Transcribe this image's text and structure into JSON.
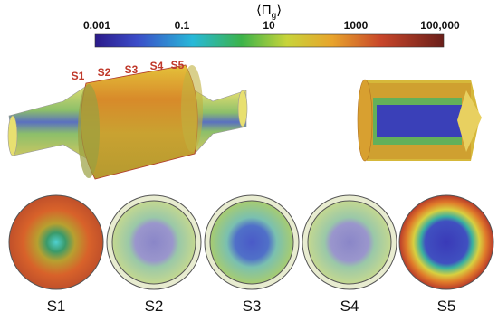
{
  "colorbar": {
    "title": {
      "open": "⟨",
      "symbol": "Π",
      "subscript": "g",
      "close": "⟩"
    },
    "ticks": [
      "0.001",
      "0.1",
      "10",
      "1000",
      "100,000"
    ]
  },
  "sections": [
    "S1",
    "S2",
    "S3",
    "S4",
    "S5"
  ]
}
